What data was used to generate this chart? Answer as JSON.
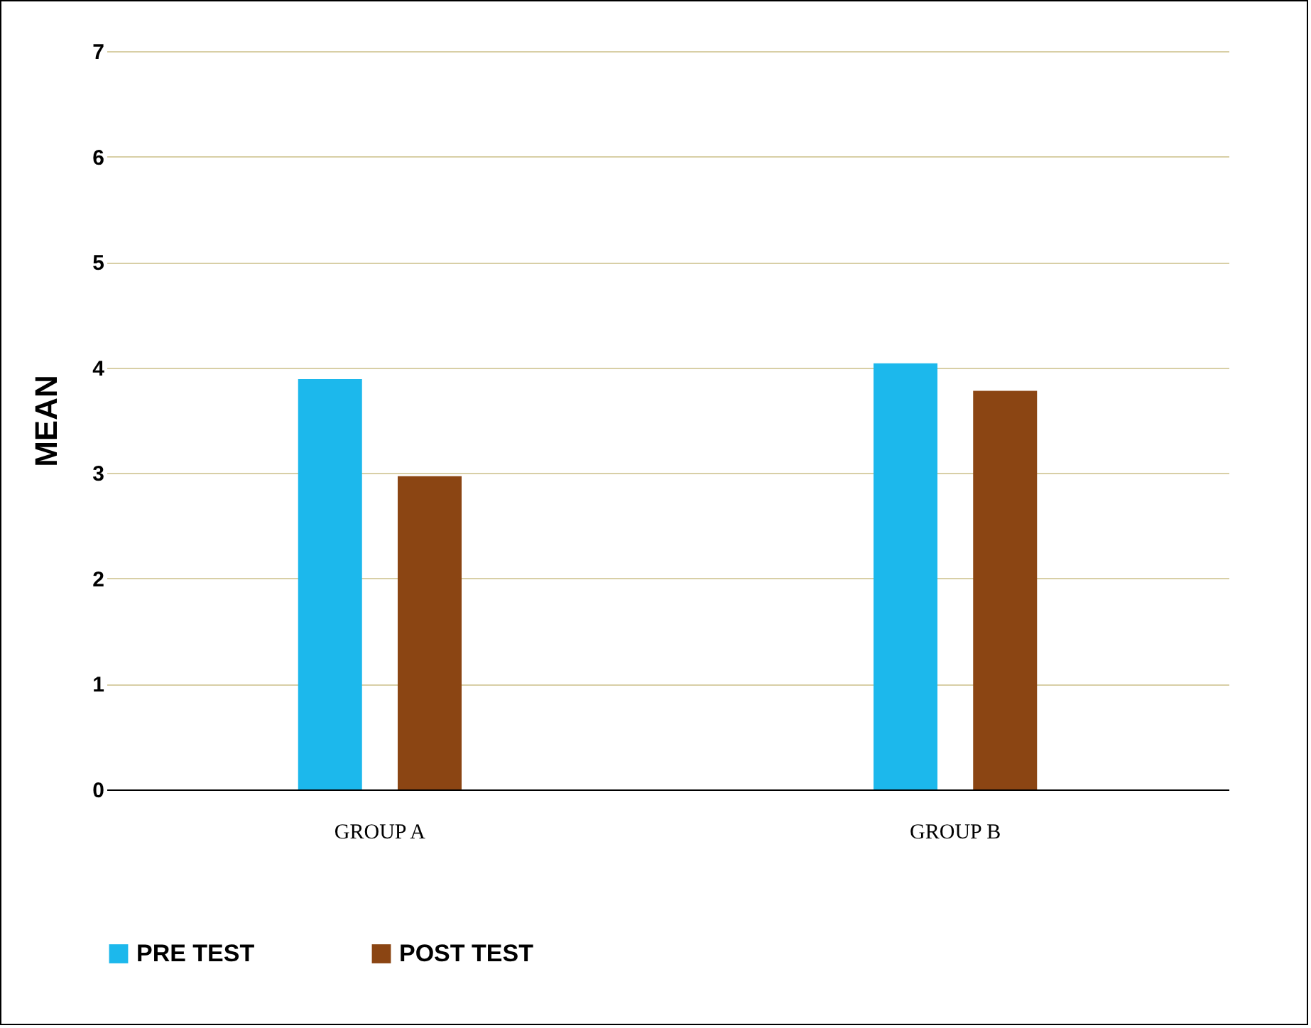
{
  "chart_data": {
    "type": "bar",
    "ylabel": "MEAN",
    "categories": [
      "GROUP A",
      "GROUP B"
    ],
    "series": [
      {
        "name": "PRE TEST",
        "color": "#1cb8ec",
        "values": [
          3.89,
          4.04
        ]
      },
      {
        "name": "POST TEST",
        "color": "#8b4513",
        "values": [
          2.97,
          3.78
        ]
      }
    ],
    "ylim": [
      0,
      7
    ],
    "yticks": [
      0,
      1,
      2,
      3,
      4,
      5,
      6,
      7
    ],
    "grid": "y",
    "legend": "bottom"
  }
}
